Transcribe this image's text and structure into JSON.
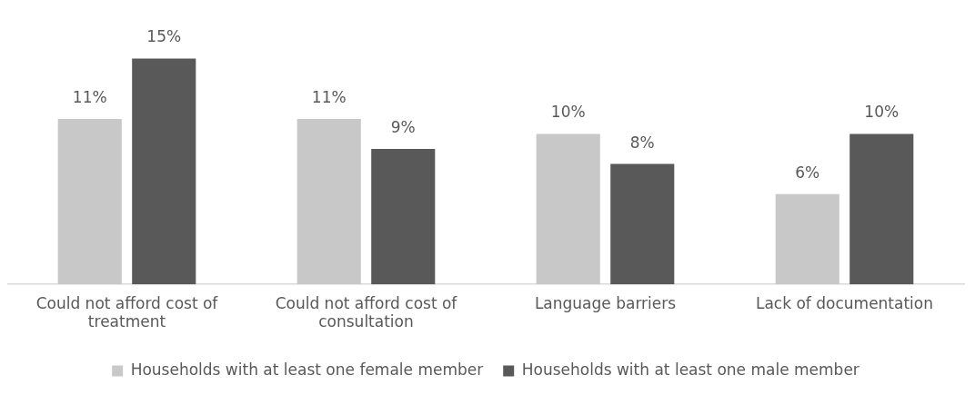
{
  "chart_data": {
    "type": "bar",
    "categories": [
      "Could not afford cost of treatment",
      "Could not afford cost of consultation",
      "Language barriers",
      "Lack of documentation"
    ],
    "series": [
      {
        "name": "Households with at least one female member",
        "color": "#c8c8c8",
        "values": [
          11,
          11,
          10,
          6
        ],
        "value_labels": [
          "11%",
          "11%",
          "10%",
          "6%"
        ]
      },
      {
        "name": "Households with at least one male member",
        "color": "#595959",
        "values": [
          15,
          9,
          8,
          10
        ],
        "value_labels": [
          "15%",
          "9%",
          "8%",
          "10%"
        ]
      }
    ],
    "legend": "bottom",
    "grid": false
  }
}
